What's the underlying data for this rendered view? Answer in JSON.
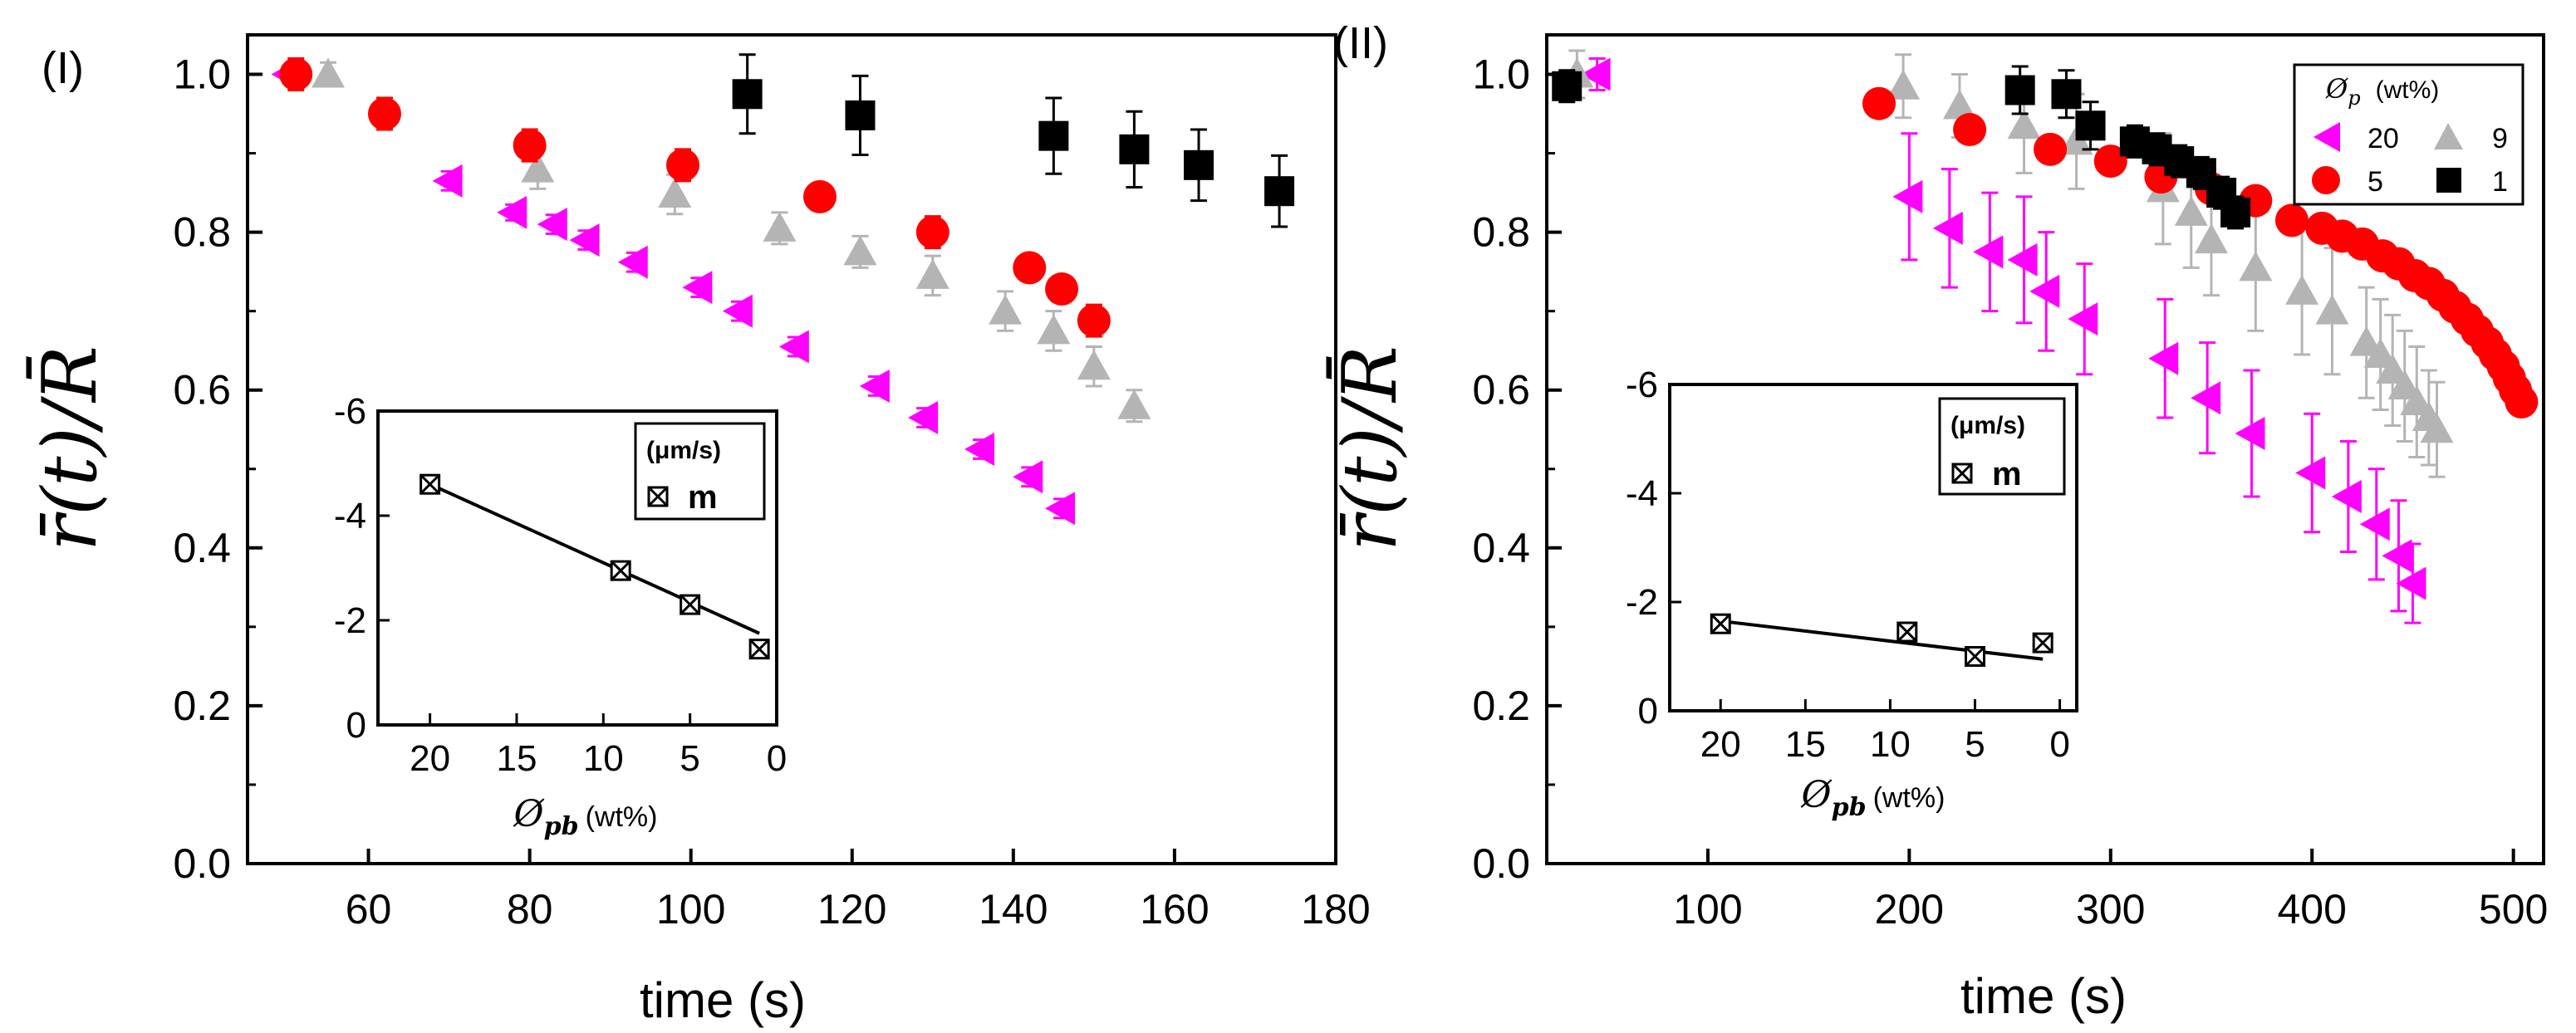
{
  "colors": {
    "magenta": "#ff00ff",
    "red": "#ff0000",
    "gray": "#b4b4b4",
    "black": "#000000"
  },
  "chart_data": [
    {
      "type": "scatter",
      "panel_label": "(I)",
      "xlabel": "time (s)",
      "ylabel": "r̄(t)/R̄",
      "xlim": [
        45,
        180
      ],
      "ylim": [
        0,
        1.05
      ],
      "xticks": [
        "60",
        "80",
        "100",
        "120",
        "140",
        "160",
        "180"
      ],
      "yticks": [
        "0.0",
        "0.2",
        "0.4",
        "0.6",
        "0.8",
        "1.0"
      ],
      "series": [
        {
          "name": "20",
          "marker": "triangle-left",
          "color": "#ff00ff",
          "x": [
            50,
            70,
            78,
            83,
            87,
            93,
            101,
            106,
            113,
            123,
            129,
            136,
            142,
            146
          ],
          "y": [
            1.0,
            0.865,
            0.825,
            0.81,
            0.79,
            0.762,
            0.73,
            0.7,
            0.655,
            0.605,
            0.565,
            0.525,
            0.49,
            0.45
          ],
          "err": [
            0,
            0.012,
            0.01,
            0.012,
            0.012,
            0.012,
            0.012,
            0.012,
            0.012,
            0.012,
            0.012,
            0.012,
            0.012,
            0.012
          ]
        },
        {
          "name": "9",
          "marker": "triangle-up",
          "color": "#b4b4b4",
          "x": [
            55,
            81,
            98,
            111,
            121,
            130,
            139,
            145,
            150,
            155
          ],
          "y": [
            1.0,
            0.88,
            0.848,
            0.805,
            0.775,
            0.745,
            0.7,
            0.675,
            0.63,
            0.58
          ],
          "err": [
            0.015,
            0.025,
            0.025,
            0.02,
            0.02,
            0.025,
            0.025,
            0.025,
            0.025,
            0.02
          ]
        },
        {
          "name": "5",
          "marker": "circle",
          "color": "#ff0000",
          "x": [
            51,
            62,
            80,
            99,
            116,
            130,
            142,
            146,
            150
          ],
          "y": [
            1.0,
            0.95,
            0.91,
            0.885,
            0.845,
            0.8,
            0.755,
            0.728,
            0.688
          ],
          "err": [
            0.02,
            0.02,
            0.02,
            0.02,
            0.015,
            0.02,
            0.015,
            0.015,
            0.02
          ]
        },
        {
          "name": "1",
          "marker": "square",
          "color": "#000000",
          "x": [
            107,
            121,
            145,
            155,
            163,
            173
          ],
          "y": [
            0.975,
            0.948,
            0.922,
            0.905,
            0.885,
            0.852
          ],
          "err": [
            0.05,
            0.05,
            0.048,
            0.048,
            0.045,
            0.045
          ]
        }
      ],
      "inset": {
        "type": "scatter",
        "xlabel": "Ø",
        "xlabel_sub": "pb",
        "xlabel_unit": "(wt%)",
        "unit_label": "(μm/s)",
        "legend_label": "m",
        "xlim": [
          23,
          0
        ],
        "ylim": [
          0,
          -6
        ],
        "xticks": [
          "20",
          "15",
          "10",
          "5",
          "0"
        ],
        "yticks": [
          "0",
          "-2",
          "-4",
          "-6"
        ],
        "x": [
          20,
          9,
          5,
          1
        ],
        "y": [
          -4.6,
          -2.95,
          -2.3,
          -1.45
        ],
        "fit": {
          "x": [
            20,
            1
          ],
          "y": [
            -4.6,
            -1.75
          ]
        }
      }
    },
    {
      "type": "scatter",
      "panel_label": "(II)",
      "xlabel": "time (s)",
      "ylabel": "r̄(t)/R̄",
      "xlim": [
        20,
        515
      ],
      "ylim": [
        0,
        1.05
      ],
      "xticks": [
        "100",
        "200",
        "300",
        "400",
        "500"
      ],
      "yticks": [
        "0.0",
        "0.2",
        "0.4",
        "0.6",
        "0.8",
        "1.0"
      ],
      "legend": {
        "title": "Ø",
        "title_sub": "p",
        "title_unit": "(wt%)",
        "entries": [
          "20",
          "9",
          "5",
          "1"
        ]
      },
      "series": [
        {
          "name": "20",
          "marker": "triangle-left",
          "color": "#ff00ff",
          "x": [
            45,
            200,
            220,
            240,
            257,
            268,
            287,
            327,
            348,
            370,
            400,
            418,
            432,
            443,
            450
          ],
          "y": [
            1.0,
            0.845,
            0.805,
            0.775,
            0.765,
            0.725,
            0.69,
            0.64,
            0.59,
            0.545,
            0.495,
            0.465,
            0.43,
            0.39,
            0.355
          ],
          "err": [
            0.02,
            0.08,
            0.075,
            0.075,
            0.08,
            0.075,
            0.07,
            0.075,
            0.07,
            0.08,
            0.075,
            0.07,
            0.07,
            0.07,
            0.05
          ]
        },
        {
          "name": "9",
          "marker": "triangle-up",
          "color": "#b4b4b4",
          "x": [
            35,
            197,
            225,
            257,
            283,
            326,
            340,
            350,
            372,
            395,
            410,
            427,
            434,
            440,
            446,
            452,
            458,
            462
          ],
          "y": [
            1.0,
            0.985,
            0.96,
            0.935,
            0.915,
            0.855,
            0.825,
            0.79,
            0.755,
            0.725,
            0.7,
            0.66,
            0.645,
            0.625,
            0.605,
            0.585,
            0.565,
            0.55
          ],
          "err": [
            0.03,
            0.04,
            0.04,
            0.06,
            0.06,
            0.07,
            0.07,
            0.07,
            0.08,
            0.08,
            0.08,
            0.07,
            0.07,
            0.07,
            0.07,
            0.07,
            0.06,
            0.06
          ]
        },
        {
          "name": "5",
          "marker": "circle",
          "color": "#ff0000",
          "x": [
            185,
            230,
            270,
            300,
            325,
            350,
            372,
            390,
            405,
            415,
            425,
            435,
            443,
            451,
            458,
            465,
            471,
            477,
            482,
            487,
            491,
            495,
            498,
            501,
            504
          ],
          "y": [
            0.963,
            0.93,
            0.905,
            0.89,
            0.87,
            0.855,
            0.84,
            0.815,
            0.805,
            0.795,
            0.785,
            0.77,
            0.76,
            0.745,
            0.735,
            0.72,
            0.705,
            0.69,
            0.675,
            0.66,
            0.645,
            0.63,
            0.615,
            0.6,
            0.585
          ],
          "err": [
            0,
            0,
            0,
            0,
            0,
            0,
            0,
            0,
            0,
            0,
            0,
            0,
            0,
            0,
            0,
            0,
            0,
            0,
            0,
            0,
            0,
            0,
            0,
            0,
            0
          ]
        },
        {
          "name": "1",
          "marker": "square",
          "color": "#000000",
          "x": [
            30,
            255,
            278,
            290,
            312,
            323,
            334,
            345,
            355,
            362
          ],
          "y": [
            0.985,
            0.98,
            0.975,
            0.935,
            0.915,
            0.905,
            0.89,
            0.875,
            0.85,
            0.825
          ],
          "err": [
            0.02,
            0.03,
            0.03,
            0.03,
            0.02,
            0.02,
            0.02,
            0.02,
            0.02,
            0.02
          ]
        }
      ],
      "inset": {
        "type": "scatter",
        "xlabel": "Ø",
        "xlabel_sub": "pb",
        "xlabel_unit": "(wt%)",
        "unit_label": "(μm/s)",
        "legend_label": "m",
        "xlim": [
          23,
          -1
        ],
        "ylim": [
          0,
          -6
        ],
        "xticks": [
          "20",
          "15",
          "10",
          "5",
          "0"
        ],
        "yticks": [
          "0",
          "-2",
          "-4",
          "-6"
        ],
        "x": [
          20,
          9,
          5,
          1
        ],
        "y": [
          -1.6,
          -1.45,
          -1.0,
          -1.25
        ],
        "fit": {
          "x": [
            20,
            1
          ],
          "y": [
            -1.65,
            -0.95
          ]
        }
      }
    }
  ]
}
